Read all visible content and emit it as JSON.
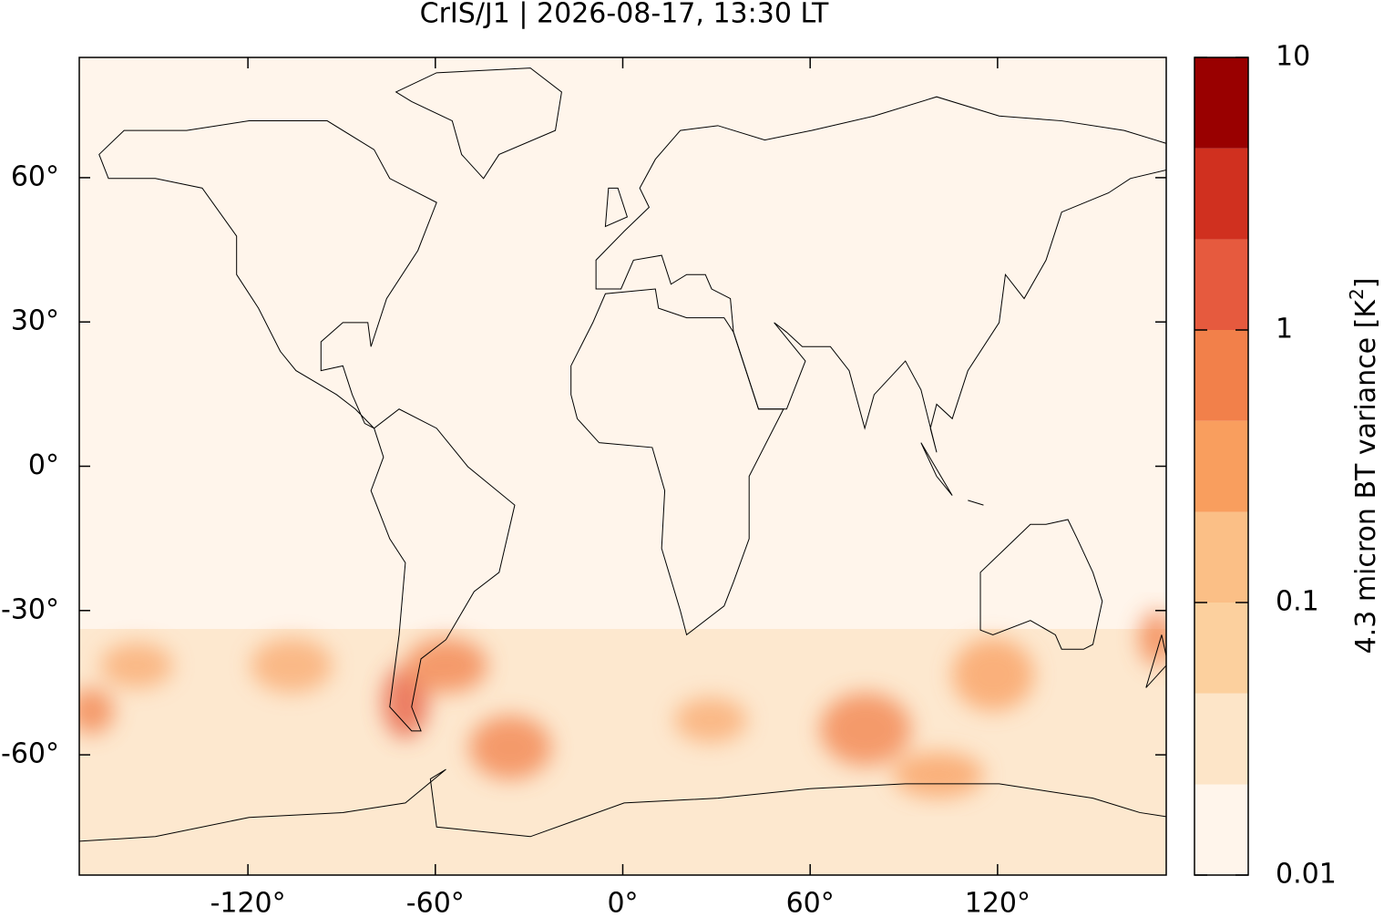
{
  "chart_data": {
    "type": "map",
    "title": "CrIS/J1 | 2026-08-17, 13:30 LT",
    "xlim": [
      -174,
      174
    ],
    "ylim": [
      -85,
      85
    ],
    "xticks": [
      {
        "value": -120,
        "label": "-120°"
      },
      {
        "value": -60,
        "label": "-60°"
      },
      {
        "value": 0,
        "label": "0°"
      },
      {
        "value": 60,
        "label": "60°"
      },
      {
        "value": 120,
        "label": "120°"
      }
    ],
    "yticks": [
      {
        "value": 60,
        "label": "60°"
      },
      {
        "value": 30,
        "label": "30°"
      },
      {
        "value": 0,
        "label": "0°"
      },
      {
        "value": -30,
        "label": "-30°"
      },
      {
        "value": -60,
        "label": "-60°"
      }
    ],
    "colorbar": {
      "log": true,
      "clim": [
        0.01,
        10
      ],
      "levels": [
        0.01,
        0.0215,
        0.0464,
        0.1,
        0.215,
        0.464,
        1,
        2.15,
        4.64,
        10
      ],
      "colors": [
        "#fff5eb",
        "#fde5c8",
        "#fcd09e",
        "#fbbf86",
        "#f99e5e",
        "#f2804a",
        "#e65a3e",
        "#d0301f",
        "#990000"
      ],
      "ticks": [
        0.01,
        0.1,
        1,
        10
      ],
      "label": {
        "text": "4.3 micron BT variance [K",
        "superscript": "2",
        "close": "]"
      }
    }
  }
}
